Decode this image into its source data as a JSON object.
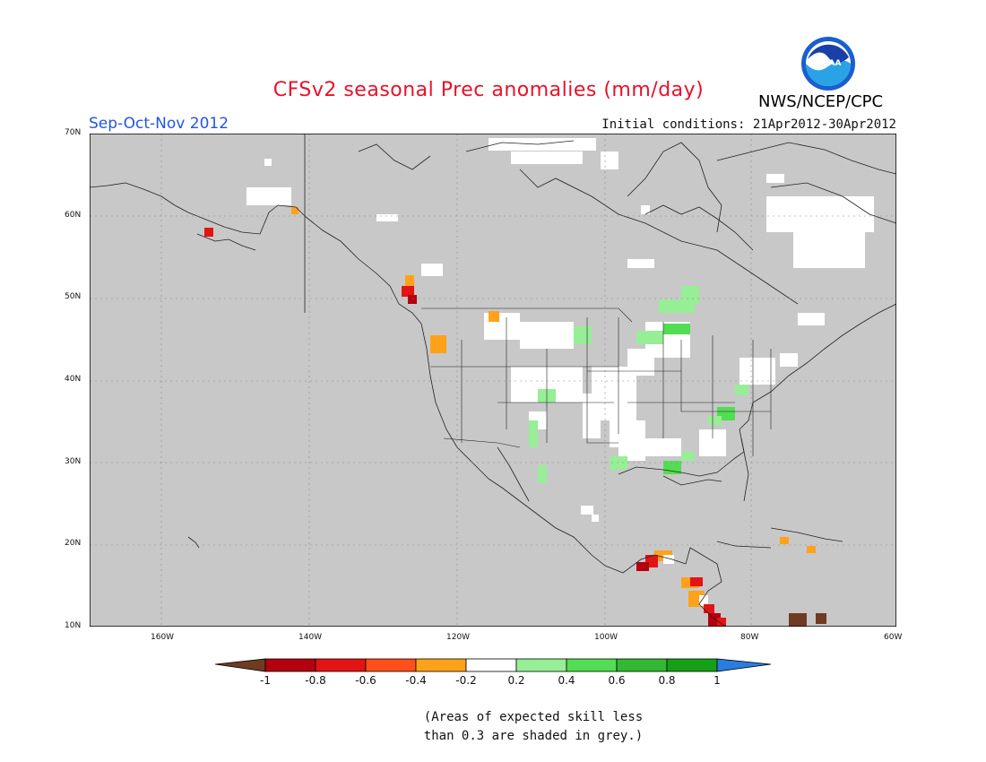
{
  "header": {
    "title": "CFSv2 seasonal Prec anomalies (mm/day)",
    "season": "Sep-Oct-Nov 2012",
    "initial_conditions": "Initial conditions: 21Apr2012-30Apr2012",
    "agency": "NWS/NCEP/CPC",
    "logo_text": "NOAA"
  },
  "map": {
    "lat_labels": [
      "70N",
      "60N",
      "50N",
      "40N",
      "30N",
      "20N",
      "10N"
    ],
    "lon_labels": [
      "160W",
      "140W",
      "120W",
      "100W",
      "80W",
      "60W"
    ],
    "background_color": "#c8c8c8",
    "land_no_skill_color": "#c8c8c8",
    "neutral_color": "#ffffff"
  },
  "legend": {
    "labels": [
      "-1",
      "-0.8",
      "-0.6",
      "-0.4",
      "-0.2",
      "0.2",
      "0.4",
      "0.6",
      "0.8",
      "1"
    ],
    "colors": [
      "#6e3b23",
      "#b5000f",
      "#e21414",
      "#ff4f1a",
      "#ffa21a",
      "#ffffff",
      "#97ee97",
      "#52dd52",
      "#32b832",
      "#16a016",
      "#2a7de0"
    ]
  },
  "footnote": {
    "line1": "(Areas of expected skill less",
    "line2": "than 0.3 are shaded in grey.)"
  }
}
